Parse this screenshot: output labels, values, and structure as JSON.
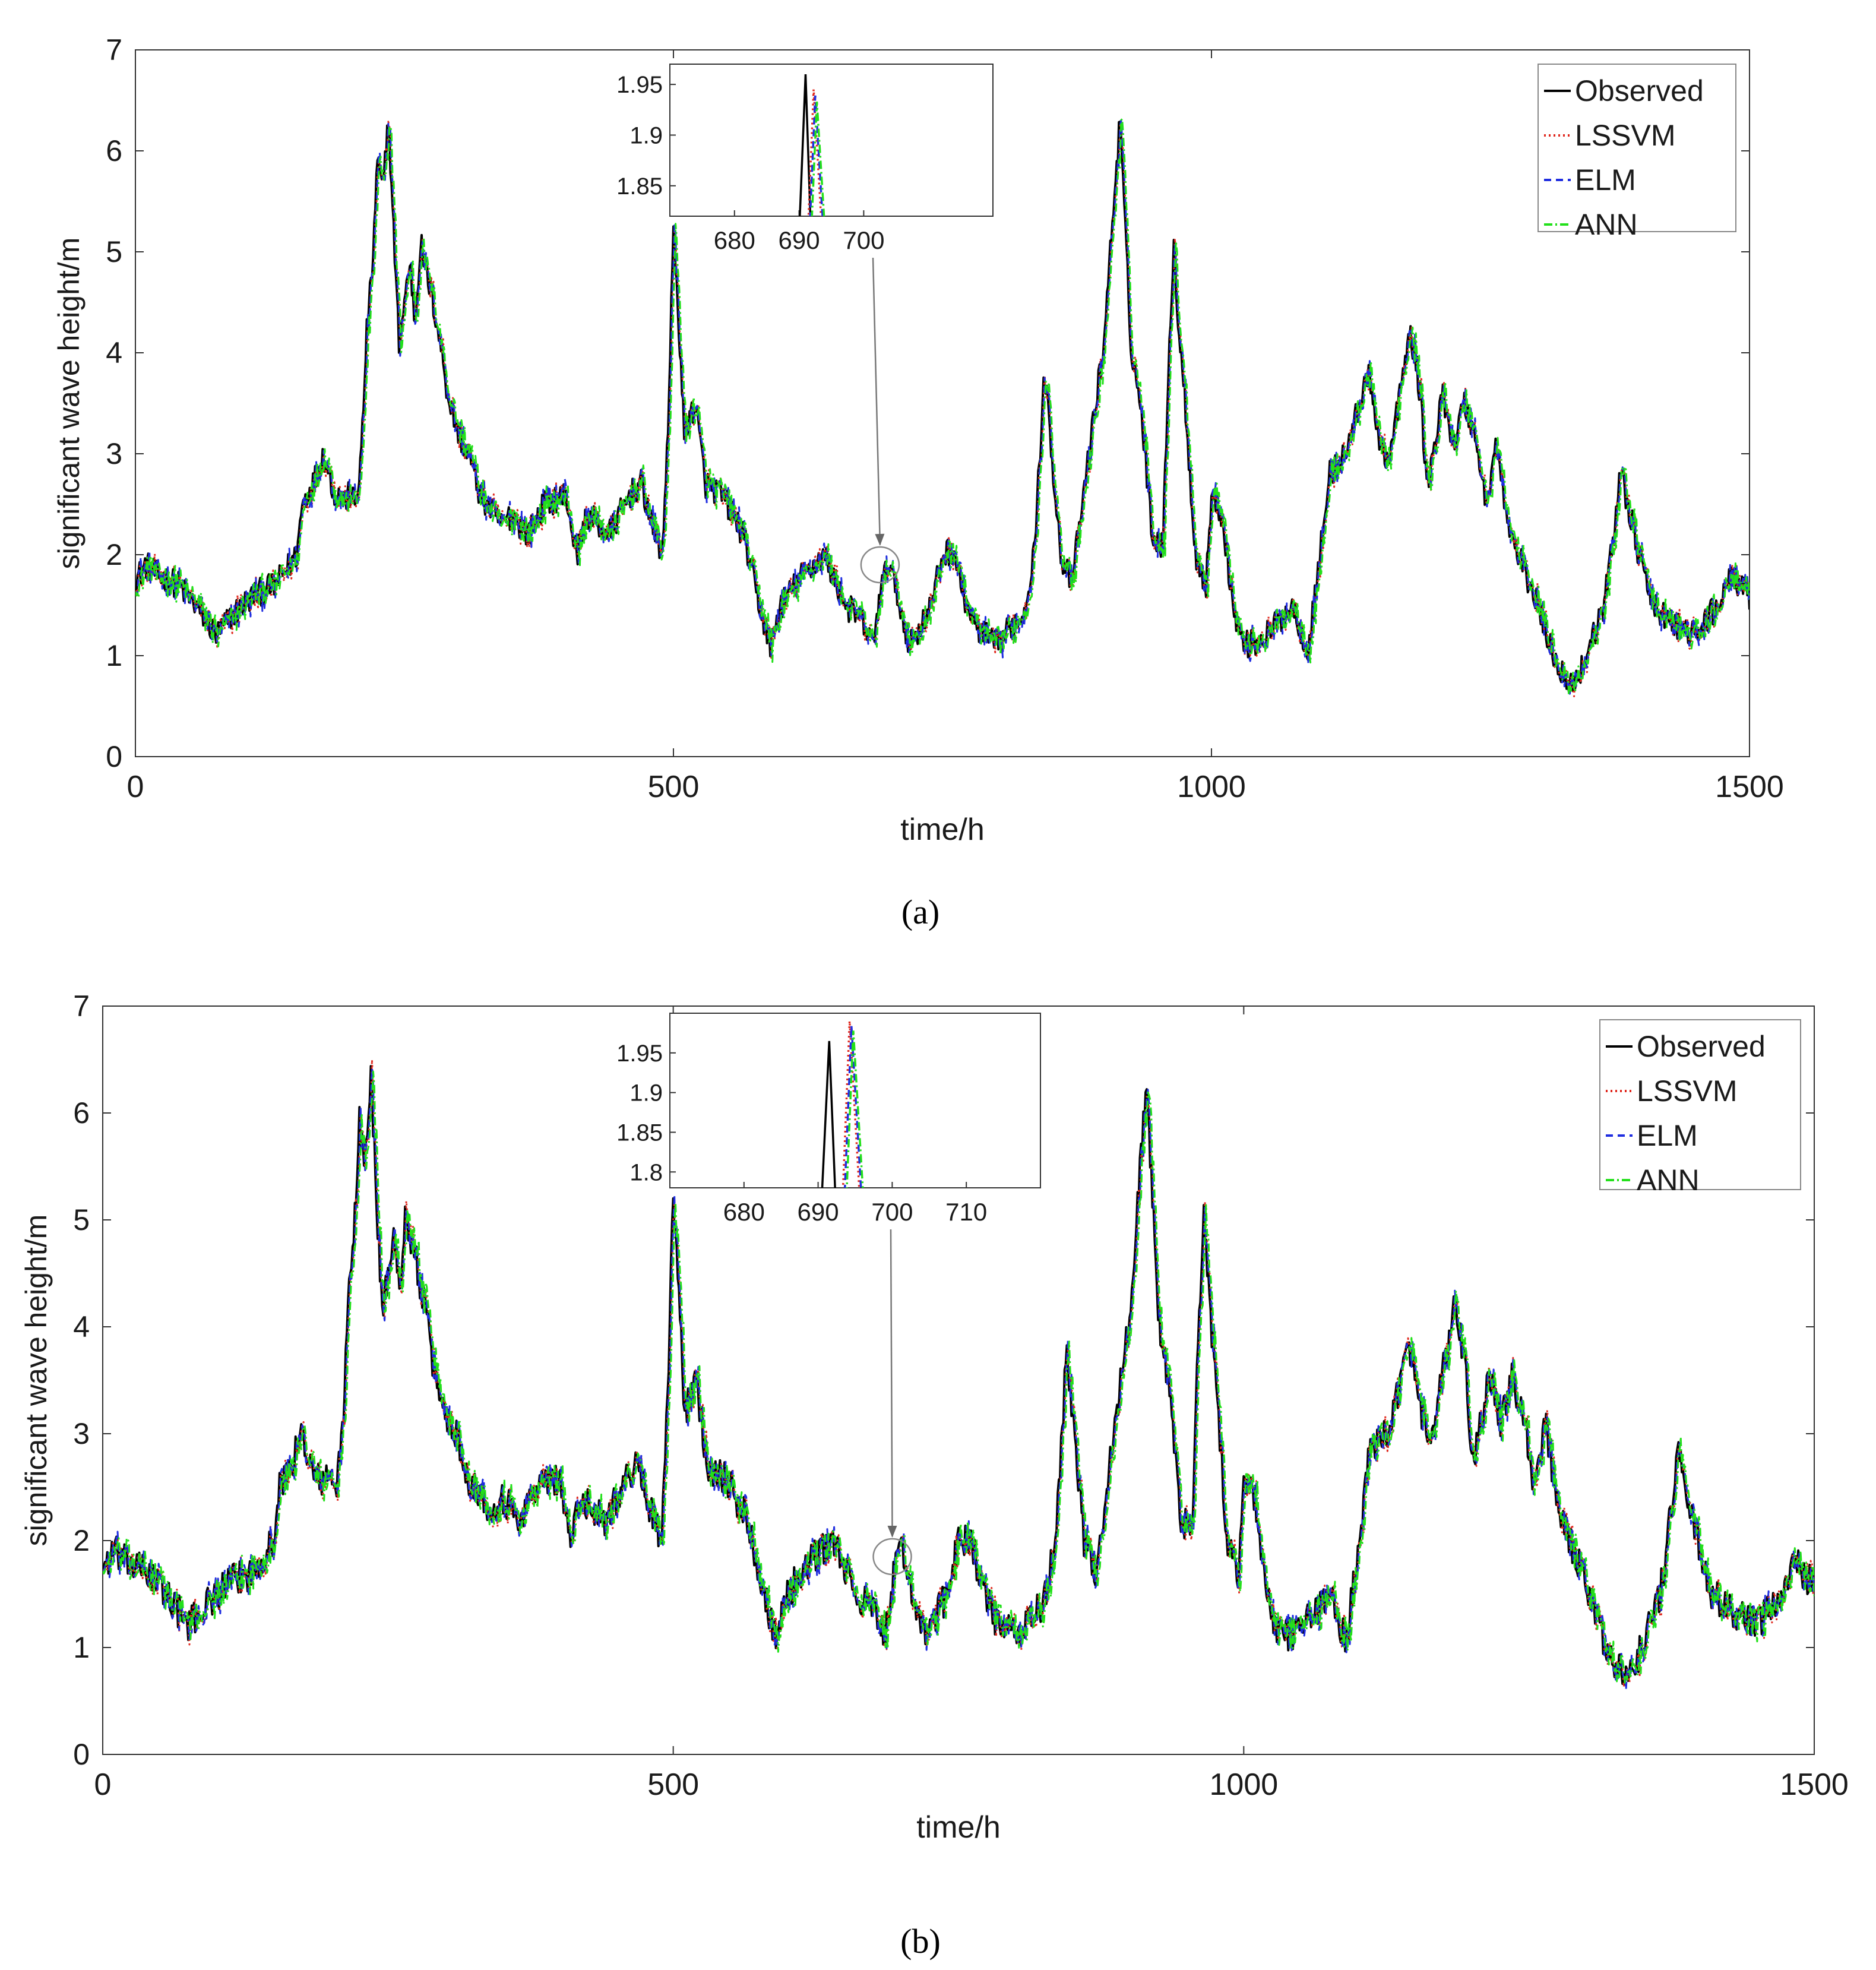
{
  "chart_data": [
    {
      "panel_label": "(a)",
      "type": "line",
      "xlabel": "time/h",
      "ylabel": "significant wave height/m",
      "xlim": [
        0,
        1500
      ],
      "ylim": [
        0,
        7
      ],
      "xticks": [
        "0",
        "500",
        "1000",
        "1500"
      ],
      "yticks": [
        "0",
        "1",
        "2",
        "3",
        "4",
        "5",
        "6",
        "7"
      ],
      "legend_location": "top-right",
      "series": [
        {
          "name": "Observed",
          "color": "#000000",
          "style": "solid"
        },
        {
          "name": "LSSVM",
          "color": "#e0281e",
          "style": "dotted"
        },
        {
          "name": "ELM",
          "color": "#1f2de0",
          "style": "dashed"
        },
        {
          "name": "ANN",
          "color": "#22e01a",
          "style": "dashdot"
        }
      ],
      "profile": {
        "x": [
          0,
          10,
          20,
          40,
          60,
          75,
          90,
          110,
          130,
          150,
          155,
          165,
          175,
          185,
          195,
          200,
          205,
          210,
          215,
          220,
          225,
          230,
          235,
          240,
          245,
          250,
          255,
          260,
          265,
          270,
          275,
          280,
          285,
          290,
          300,
          310,
          320,
          340,
          350,
          365,
          380,
          400,
          410,
          420,
          440,
          460,
          470,
          480,
          490,
          495,
          500,
          505,
          510,
          520,
          530,
          545,
          565,
          580,
          590,
          600,
          620,
          640,
          660,
          675,
          685,
          692,
          700,
          710,
          720,
          730,
          740,
          750,
          760,
          770,
          780,
          790,
          800,
          815,
          825,
          835,
          845,
          850,
          860,
          870,
          880,
          890,
          900,
          910,
          915,
          920,
          925,
          935,
          945,
          955,
          960,
          965,
          970,
          975,
          985,
          995,
          1000,
          1010,
          1020,
          1030,
          1045,
          1060,
          1075,
          1090,
          1110,
          1125,
          1135,
          1145,
          1155,
          1165,
          1175,
          1185,
          1190,
          1195,
          1200,
          1205,
          1215,
          1225,
          1235,
          1245,
          1255,
          1265,
          1275,
          1285,
          1300,
          1315,
          1325,
          1335,
          1345,
          1355,
          1365,
          1375,
          1380,
          1385,
          1395,
          1410,
          1430,
          1450,
          1470,
          1485,
          1500
        ],
        "observed": [
          1.75,
          1.9,
          1.8,
          1.7,
          1.45,
          1.2,
          1.4,
          1.6,
          1.7,
          2.0,
          2.5,
          2.7,
          3.0,
          2.6,
          2.55,
          2.6,
          2.5,
          3.0,
          4.2,
          4.8,
          5.9,
          5.6,
          6.35,
          5.2,
          4.1,
          4.5,
          4.9,
          4.3,
          5.1,
          4.8,
          4.6,
          4.3,
          4.0,
          3.6,
          3.2,
          3.0,
          2.6,
          2.3,
          2.4,
          2.2,
          2.5,
          2.6,
          2.0,
          2.4,
          2.2,
          2.6,
          2.7,
          2.3,
          2.0,
          3.3,
          5.2,
          4.3,
          3.2,
          3.5,
          2.7,
          2.6,
          2.2,
          1.5,
          1.1,
          1.5,
          1.8,
          2.0,
          1.5,
          1.35,
          1.1,
          1.6,
          1.95,
          1.5,
          1.1,
          1.3,
          1.5,
          2.0,
          2.05,
          1.6,
          1.3,
          1.2,
          1.1,
          1.3,
          1.4,
          2.0,
          3.8,
          3.2,
          2.0,
          1.7,
          2.5,
          3.3,
          4.1,
          5.6,
          6.3,
          5.2,
          4.1,
          3.4,
          2.2,
          2.1,
          3.9,
          5.0,
          4.2,
          3.6,
          2.0,
          1.7,
          2.6,
          2.4,
          1.5,
          1.1,
          1.15,
          1.3,
          1.5,
          1.05,
          2.8,
          3.0,
          3.4,
          3.8,
          3.2,
          2.9,
          3.6,
          4.2,
          3.9,
          3.5,
          2.7,
          2.9,
          3.6,
          3.1,
          3.5,
          3.2,
          2.5,
          3.1,
          2.3,
          2.0,
          1.6,
          1.1,
          0.85,
          0.7,
          0.9,
          1.2,
          1.5,
          2.3,
          2.9,
          2.6,
          2.1,
          1.5,
          1.3,
          1.2,
          1.5,
          1.8,
          1.55
        ],
        "noise_amplitude": 0.14
      },
      "inset": {
        "xlim": [
          670,
          720
        ],
        "ylim": [
          1.82,
          1.97
        ],
        "xticks": [
          "680",
          "690",
          "700"
        ],
        "yticks": [
          "1.85",
          "1.9",
          "1.95"
        ],
        "peak_x": 691,
        "peak_y": 1.96,
        "predicted_peak_x": 692.5,
        "predicted_peak_y": 1.945,
        "zoom_center_x": 692,
        "zoom_center_y": 1.9
      }
    },
    {
      "panel_label": "(b)",
      "type": "line",
      "xlabel": "time/h",
      "ylabel": "significant wave height/m",
      "xlim": [
        0,
        1500
      ],
      "ylim": [
        0,
        7
      ],
      "xticks": [
        "0",
        "500",
        "1000",
        "1500"
      ],
      "yticks": [
        "0",
        "1",
        "2",
        "3",
        "4",
        "5",
        "6",
        "7"
      ],
      "legend_location": "top-right",
      "series": [
        {
          "name": "Observed",
          "color": "#000000",
          "style": "solid"
        },
        {
          "name": "LSSVM",
          "color": "#e0281e",
          "style": "dotted"
        },
        {
          "name": "ELM",
          "color": "#1f2de0",
          "style": "dashed"
        },
        {
          "name": "ANN",
          "color": "#22e01a",
          "style": "dashdot"
        }
      ],
      "profile": {
        "x": [
          0,
          10,
          20,
          40,
          60,
          75,
          90,
          110,
          130,
          150,
          155,
          165,
          175,
          185,
          195,
          200,
          205,
          210,
          215,
          220,
          225,
          230,
          235,
          240,
          245,
          250,
          255,
          260,
          265,
          270,
          275,
          280,
          285,
          290,
          300,
          310,
          320,
          340,
          350,
          365,
          380,
          400,
          410,
          420,
          440,
          460,
          470,
          480,
          490,
          495,
          500,
          505,
          510,
          520,
          530,
          545,
          565,
          580,
          590,
          600,
          620,
          640,
          660,
          675,
          685,
          692,
          700,
          710,
          720,
          730,
          740,
          750,
          760,
          770,
          780,
          790,
          800,
          815,
          825,
          835,
          845,
          850,
          860,
          870,
          880,
          890,
          900,
          910,
          915,
          920,
          925,
          935,
          945,
          955,
          960,
          965,
          970,
          975,
          985,
          995,
          1000,
          1010,
          1020,
          1030,
          1045,
          1060,
          1075,
          1090,
          1110,
          1125,
          1135,
          1145,
          1155,
          1165,
          1175,
          1185,
          1190,
          1195,
          1200,
          1205,
          1215,
          1225,
          1235,
          1245,
          1255,
          1265,
          1275,
          1285,
          1300,
          1315,
          1325,
          1335,
          1345,
          1355,
          1365,
          1375,
          1380,
          1385,
          1395,
          1410,
          1430,
          1450,
          1470,
          1485,
          1500
        ],
        "observed": [
          1.75,
          1.9,
          1.8,
          1.7,
          1.45,
          1.2,
          1.4,
          1.6,
          1.7,
          2.0,
          2.5,
          2.7,
          3.0,
          2.6,
          2.55,
          2.6,
          2.5,
          3.0,
          4.2,
          4.8,
          5.9,
          5.6,
          6.35,
          5.2,
          4.1,
          4.5,
          4.9,
          4.3,
          5.1,
          4.8,
          4.6,
          4.3,
          4.0,
          3.6,
          3.2,
          3.0,
          2.6,
          2.3,
          2.4,
          2.2,
          2.5,
          2.6,
          2.0,
          2.4,
          2.2,
          2.6,
          2.7,
          2.3,
          2.0,
          3.3,
          5.2,
          4.3,
          3.2,
          3.5,
          2.7,
          2.6,
          2.2,
          1.5,
          1.1,
          1.5,
          1.8,
          2.0,
          1.5,
          1.35,
          1.1,
          1.6,
          1.95,
          1.5,
          1.1,
          1.3,
          1.5,
          2.0,
          2.05,
          1.6,
          1.3,
          1.2,
          1.1,
          1.3,
          1.4,
          2.0,
          3.8,
          3.2,
          2.0,
          1.7,
          2.5,
          3.3,
          4.1,
          5.6,
          6.3,
          5.2,
          4.1,
          3.4,
          2.2,
          2.1,
          3.9,
          5.0,
          4.2,
          3.6,
          2.0,
          1.7,
          2.6,
          2.4,
          1.5,
          1.1,
          1.15,
          1.3,
          1.5,
          1.05,
          2.8,
          3.0,
          3.4,
          3.8,
          3.2,
          2.9,
          3.6,
          4.2,
          3.9,
          3.5,
          2.7,
          2.9,
          3.6,
          3.1,
          3.5,
          3.2,
          2.5,
          3.1,
          2.3,
          2.0,
          1.6,
          1.1,
          0.85,
          0.7,
          0.9,
          1.2,
          1.5,
          2.3,
          2.9,
          2.6,
          2.1,
          1.5,
          1.3,
          1.2,
          1.5,
          1.8,
          1.55
        ],
        "noise_amplitude": 0.16
      },
      "inset": {
        "xlim": [
          670,
          720
        ],
        "ylim": [
          1.78,
          2.0
        ],
        "xticks": [
          "680",
          "690",
          "700",
          "710"
        ],
        "yticks": [
          "1.8",
          "1.85",
          "1.9",
          "1.95"
        ],
        "peak_x": 691.5,
        "peak_y": 1.965,
        "predicted_peak_x": 694.5,
        "predicted_peak_y": 1.99,
        "zoom_center_x": 692,
        "zoom_center_y": 1.85
      }
    }
  ]
}
